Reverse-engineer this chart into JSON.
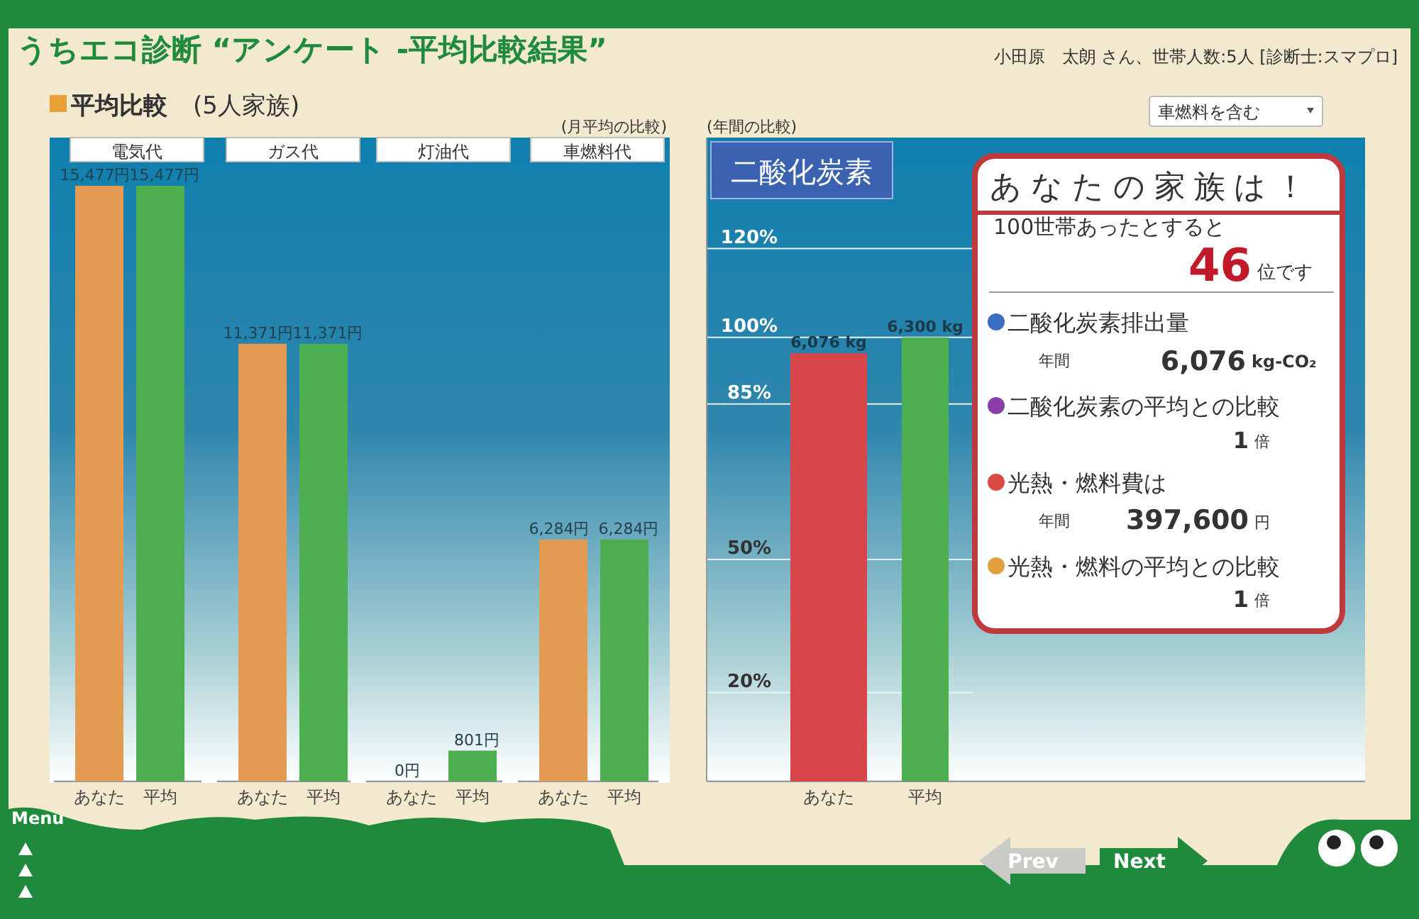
{
  "chart_data": [
    {
      "type": "other",
      "title": "うちエコ診断 “アンケート -平均比較結果”",
      "annotations": [
        "小田原　太朗 さん、世帯人数:5人 [診断士:スマプロ]",
        "平均比較",
        "(5人家族)",
        "(月平均の比較)",
        "(年間の比較)",
        "車燃料を含む",
        "Menu",
        "Prev",
        "Next"
      ]
    },
    {
      "type": "bar",
      "title": "電気代",
      "categories": [
        "あなた",
        "平均"
      ],
      "values": [
        15477,
        15477
      ],
      "colors": [
        "#e39a52",
        "#4cae4f"
      ],
      "value_labels": [
        "15,477円",
        "15,477円"
      ]
    },
    {
      "type": "bar",
      "title": "ガス代",
      "categories": [
        "あなた",
        "平均"
      ],
      "values": [
        11371,
        11371
      ],
      "colors": [
        "#e39a52",
        "#4cae4f"
      ],
      "value_labels": [
        "11,371円",
        "11,371円"
      ]
    },
    {
      "type": "bar",
      "title": "灯油代",
      "categories": [
        "あなた",
        "平均"
      ],
      "values": [
        0,
        801
      ],
      "colors": [
        "#e39a52",
        "#4cae4f"
      ],
      "value_labels": [
        "0円",
        "801円"
      ]
    },
    {
      "type": "bar",
      "title": "車燃料代",
      "categories": [
        "あなた",
        "平均"
      ],
      "values": [
        6284,
        6284
      ],
      "colors": [
        "#e39a52",
        "#4cae4f"
      ],
      "value_labels": [
        "6,284円",
        "6,284円"
      ]
    },
    {
      "type": "bar",
      "title": "二酸化炭素",
      "categories": [
        "あなた",
        "平均"
      ],
      "values": [
        96.4,
        100
      ],
      "colors": [
        "#d8464a",
        "#4cae4f"
      ],
      "annotations": [
        {
          "text": "6,076 kg",
          "x": "あなた",
          "y": 96.4
        },
        {
          "text": "6,300 kg",
          "x": "平均",
          "y": 100
        }
      ],
      "ylim": [
        0,
        145
      ],
      "yticks": [
        {
          "value": 20,
          "label": "20%"
        },
        {
          "value": 50,
          "label": "50%"
        },
        {
          "value": 85,
          "label": "85%"
        },
        {
          "value": 100,
          "label": "100%"
        },
        {
          "value": 120,
          "label": "120%"
        }
      ],
      "grid": "y"
    },
    {
      "type": "other",
      "title": "あなたの家族は！",
      "annotations": [
        "100世帯あったとすると",
        "46",
        "位です",
        "二酸化炭素排出量",
        "年間",
        "6,076",
        "kg-CO₂",
        "二酸化炭素の平均との比較",
        "1",
        "倍",
        "光熱・燃料費は",
        "年間",
        "397,600",
        "円",
        "光熱・燃料の平均との比較",
        "1",
        "倍"
      ]
    }
  ]
}
